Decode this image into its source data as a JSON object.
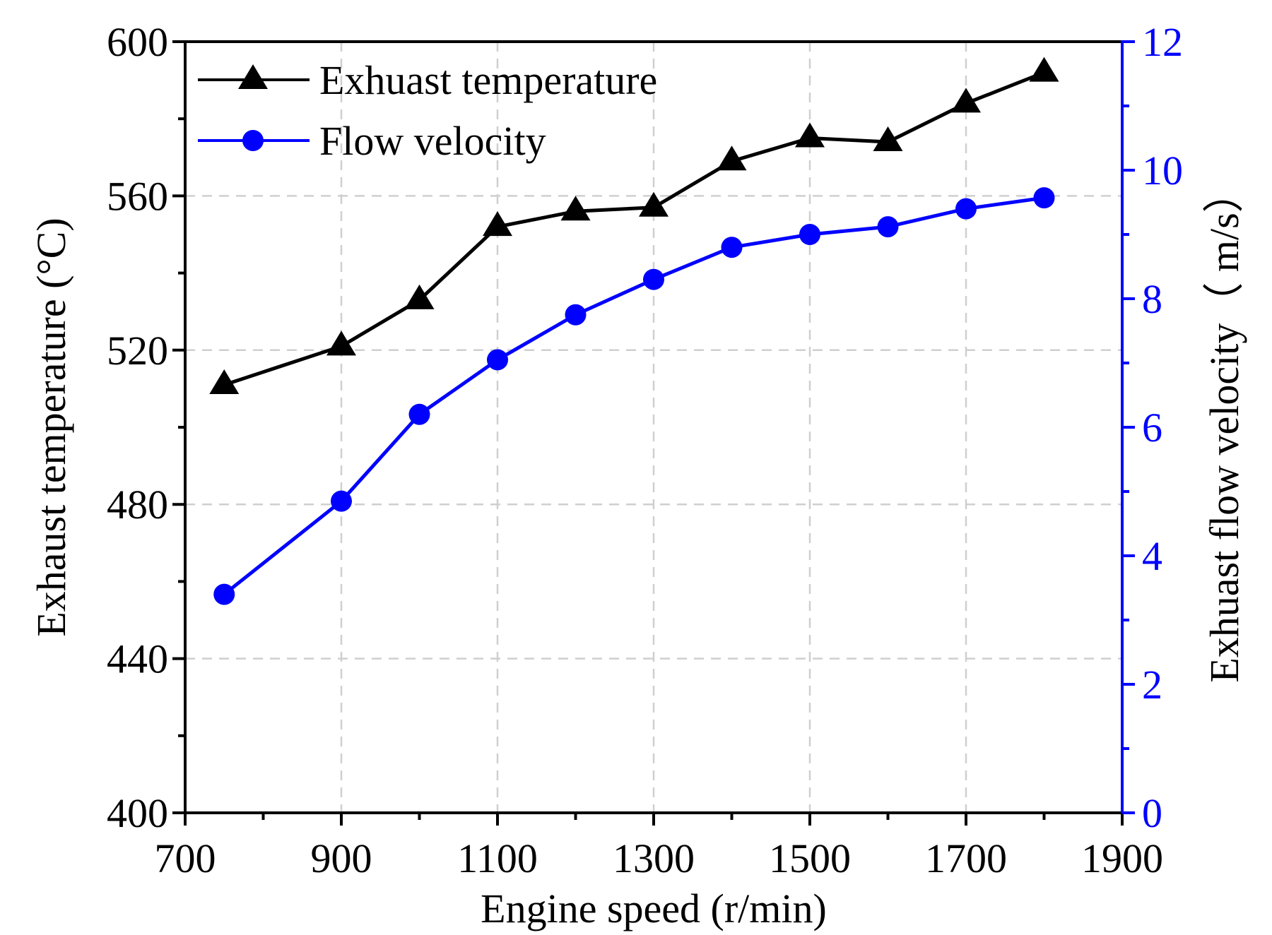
{
  "chart_data": {
    "type": "line",
    "x": [
      750,
      900,
      1000,
      1100,
      1200,
      1300,
      1400,
      1500,
      1600,
      1700,
      1800
    ],
    "xlabel": "Engine speed (r/min)",
    "xlim": [
      700,
      1900
    ],
    "xticks": [
      700,
      900,
      1100,
      1300,
      1500,
      1700,
      1900
    ],
    "grid": true,
    "legend": "top-left",
    "series": [
      {
        "name": "Exhuast temperature",
        "axis": "left",
        "marker": "triangle",
        "color": "#000000",
        "values": [
          511,
          521,
          533,
          552,
          556,
          557,
          569,
          575,
          574,
          584,
          592
        ]
      },
      {
        "name": "Flow velocity",
        "axis": "right",
        "marker": "circle",
        "color": "#0000ff",
        "values": [
          3.4,
          4.85,
          6.2,
          7.05,
          7.75,
          8.3,
          8.8,
          9.0,
          9.12,
          9.4,
          9.57
        ]
      }
    ],
    "y_left": {
      "label": "Exhaust temperature (°C)",
      "lim": [
        400,
        600
      ],
      "ticks": [
        400,
        440,
        480,
        520,
        560,
        600
      ],
      "color": "#000000"
    },
    "y_right": {
      "label": "Exhuast flow velocity（ m/s）",
      "lim": [
        0,
        12
      ],
      "ticks": [
        0,
        2,
        4,
        6,
        8,
        10,
        12
      ],
      "color": "#0000ff"
    }
  }
}
